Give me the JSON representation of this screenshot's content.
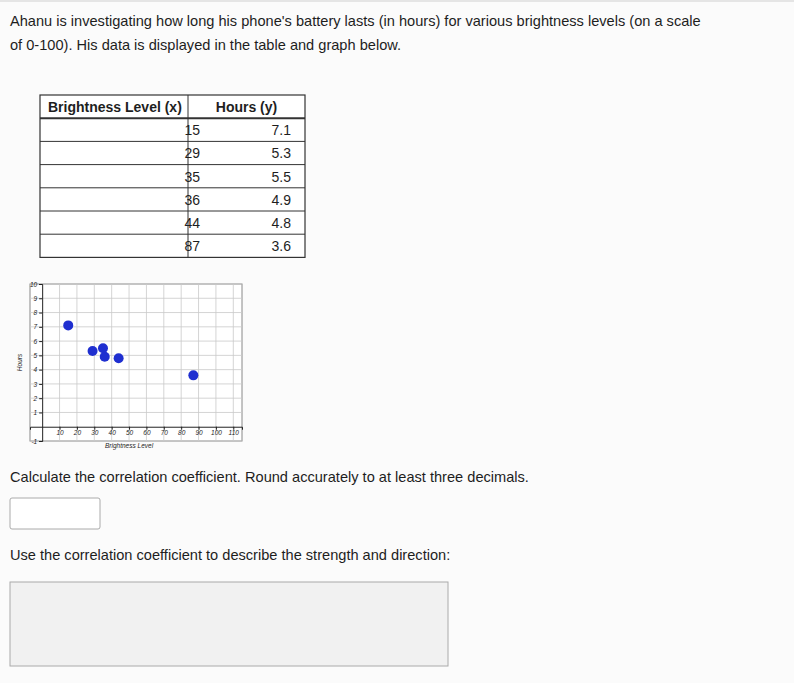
{
  "document": {
    "intro": [
      "Ahanu is investigating how long his phone's battery lasts (in hours) for various brightness levels (on a scale",
      "of 0-100). His data is displayed in the table and graph below."
    ],
    "table": {
      "header": [
        "Brightness Level (x)",
        "Hours (y)"
      ],
      "rows": [
        [
          15,
          7.1
        ],
        [
          29,
          5.3
        ],
        [
          35,
          5.5
        ],
        [
          36,
          4.9
        ],
        [
          44,
          4.8
        ],
        [
          87,
          3.6
        ]
      ]
    },
    "question_1": "Calculate the correlation coefficient. Round accurately to at least three decimals.",
    "question_2": "Use the correlation coefficient to describe the strength and direction:"
  },
  "chart_data": {
    "type": "scatter",
    "x_label": "Brightness Level",
    "y_label": "Hours",
    "x": [
      15,
      29,
      35,
      36,
      44,
      87
    ],
    "values": [
      7.1,
      5.3,
      5.5,
      4.9,
      4.8,
      3.6
    ],
    "color": "#1f2fd0",
    "marker": "circle",
    "xlim": [
      -7,
      115
    ],
    "ylim": [
      -1,
      10
    ],
    "xticks": [
      10,
      20,
      30,
      40,
      50,
      60,
      70,
      80,
      90,
      100,
      110
    ],
    "yticks": [
      -1,
      1,
      2,
      3,
      4,
      5,
      6,
      7,
      8,
      9,
      10
    ],
    "grid": true
  }
}
